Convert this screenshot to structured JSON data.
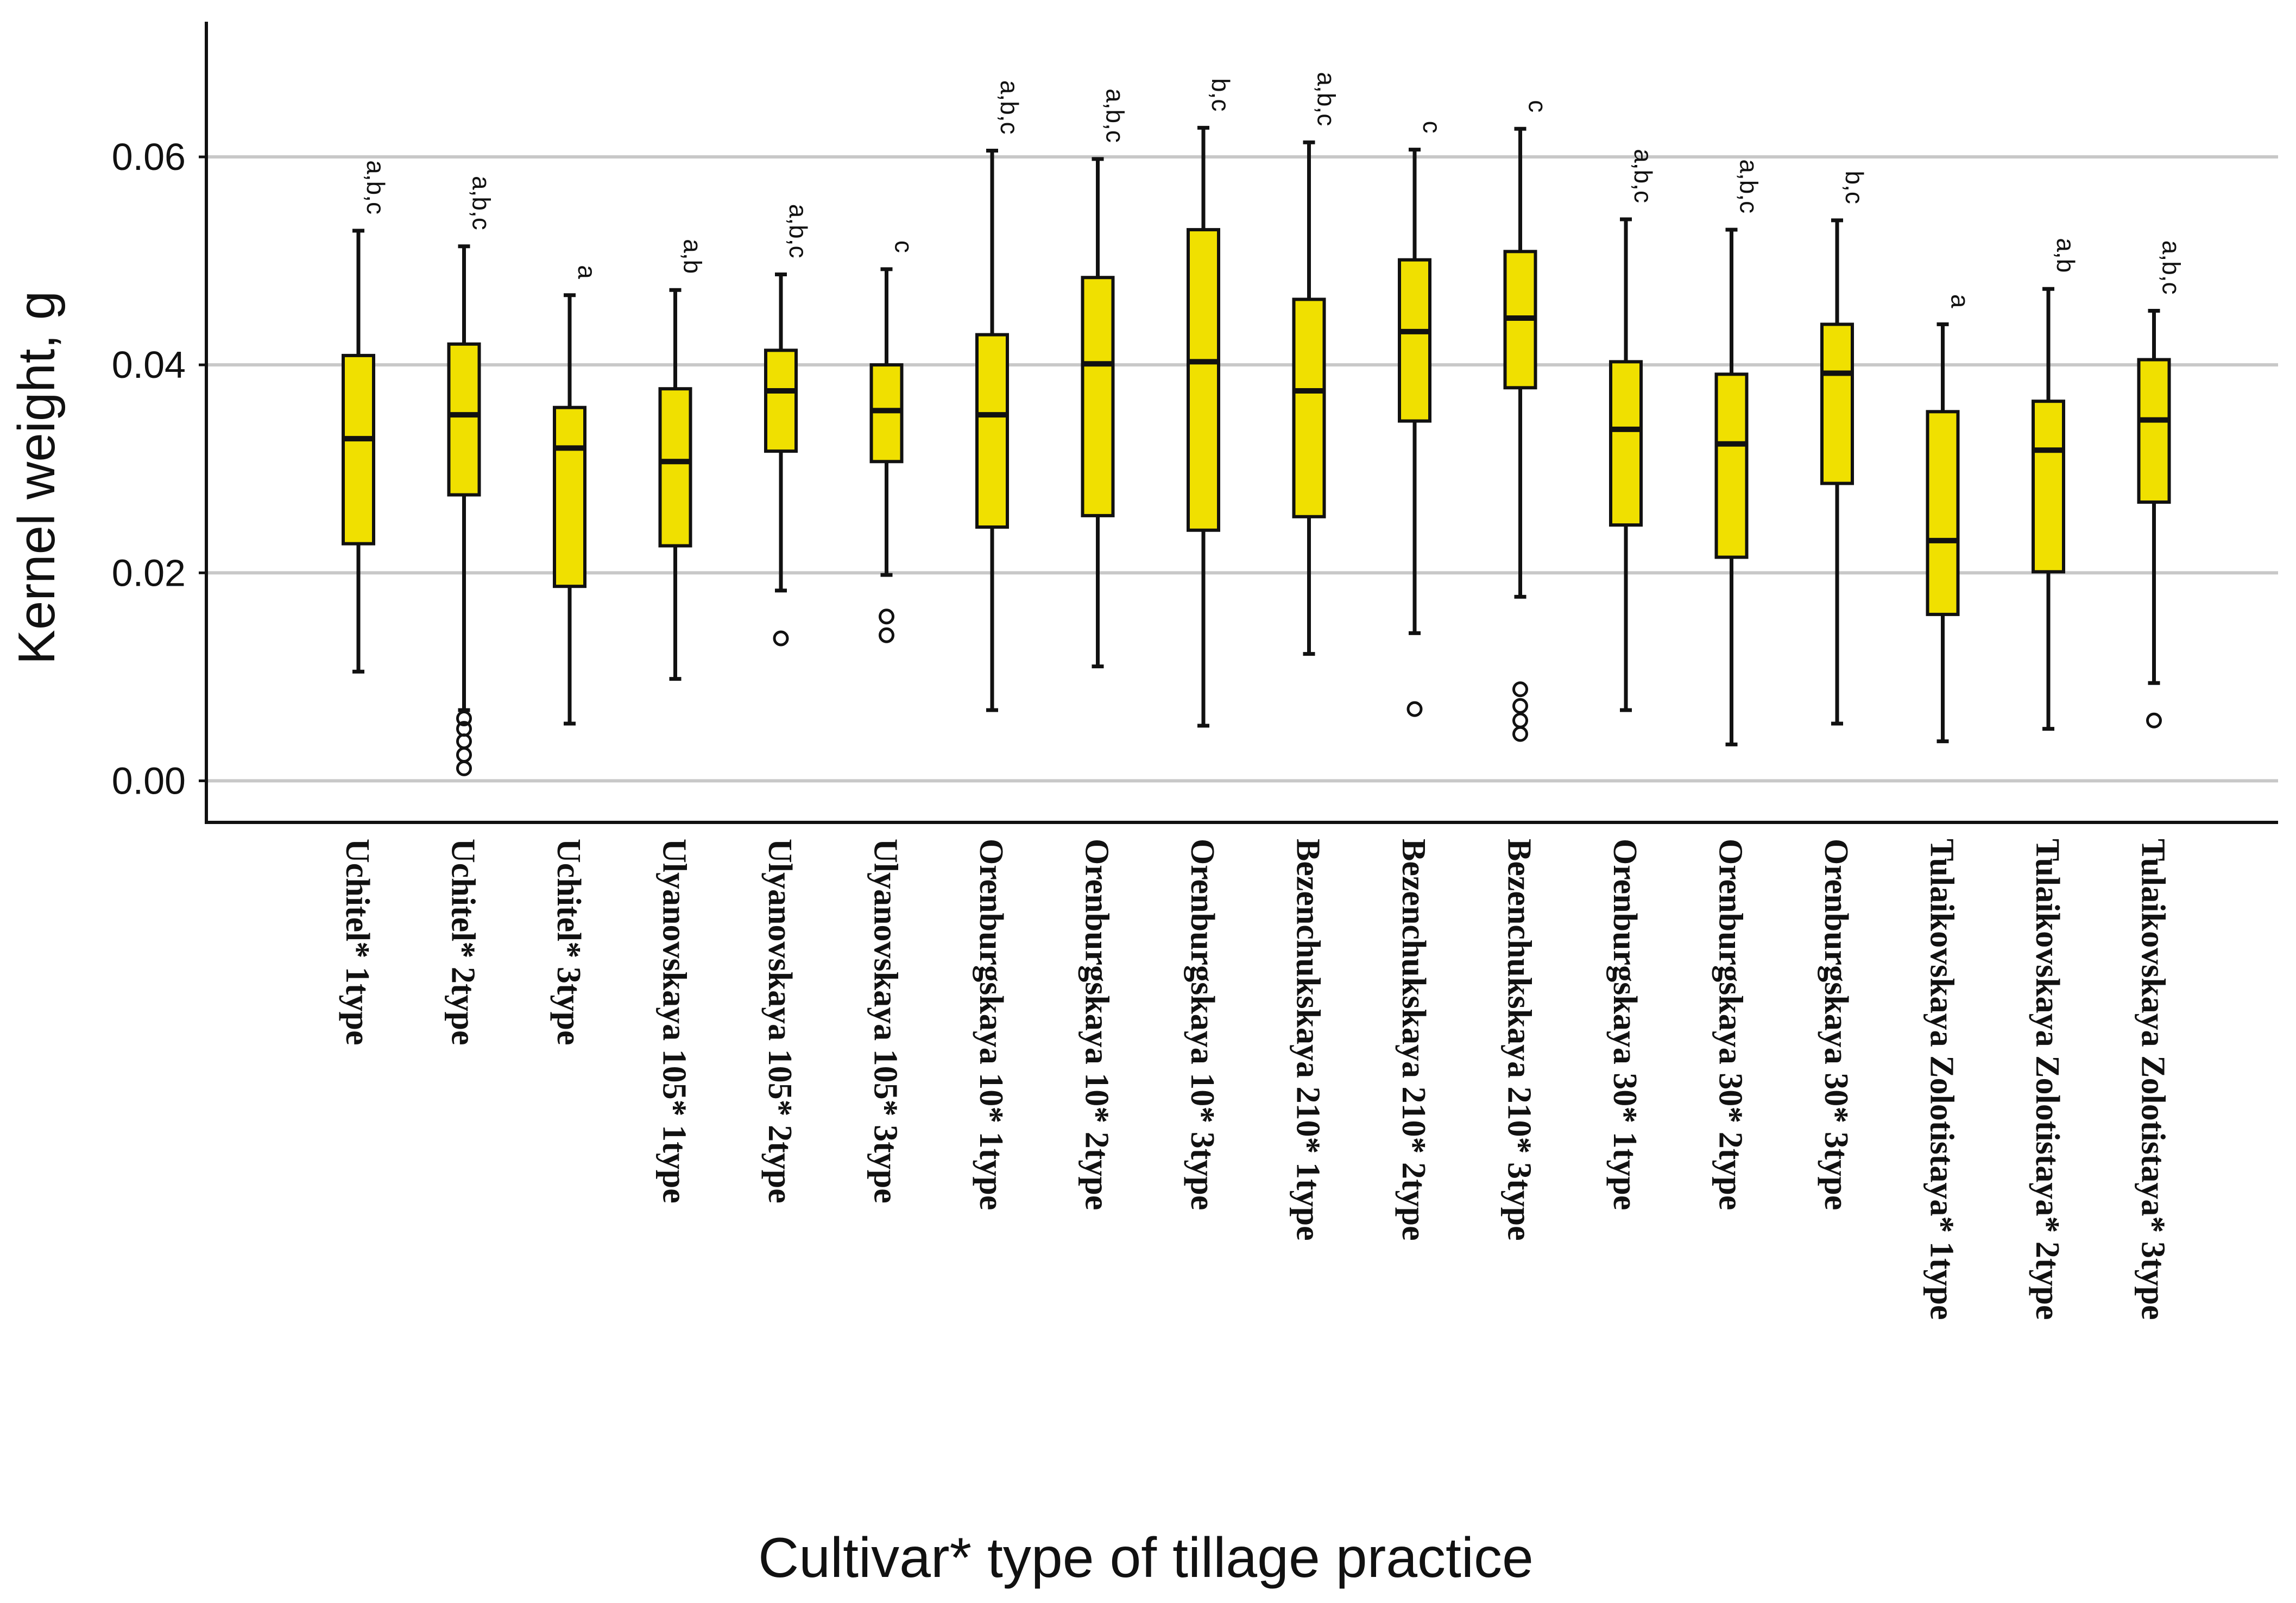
{
  "chart_data": {
    "type": "boxplot",
    "ylabel": "Kernel weight, g",
    "xlabel": "Cultivar* type of tillage practice",
    "ylim": [
      -0.004,
      0.073
    ],
    "yticks": [
      "0.00",
      "0.02",
      "0.04",
      "0.06"
    ],
    "ytick_values": [
      0.0,
      0.02,
      0.04,
      0.06
    ],
    "grid": true,
    "box_color": "#f0e000",
    "box_edge": "#111111",
    "categories": [
      "Uchitel* 1type",
      "Uchitel* 2type",
      "Uchitel* 3type",
      "Ulyanovskaya 105* 1type",
      "Ulyanovskaya 105* 2type",
      "Ulyanovskaya 105* 3type",
      "Orenburgskaya 10* 1type",
      "Orenburgskaya 10* 2type",
      "Orenburgskaya 10* 3type",
      "Bezenchukskaya 210* 1type",
      "Bezenchukskaya 210* 2type",
      "Bezenchukskaya 210* 3type",
      "Orenburgskaya 30* 1type",
      "Orenburgskaya 30* 2type",
      "Orenburgskaya 30* 3type",
      "Tulaikovskaya Zolotistaya* 1type",
      "Tulaikovskaya Zolotistaya* 2type",
      "Tulaikovskaya Zolotistaya* 3type"
    ],
    "boxes": [
      {
        "min": 0.0105,
        "q1": 0.0228,
        "median": 0.0329,
        "q3": 0.0409,
        "max": 0.0529,
        "outliers": [],
        "letters": "a,b,c"
      },
      {
        "min": 0.0068,
        "q1": 0.0275,
        "median": 0.0352,
        "q3": 0.042,
        "max": 0.0514,
        "outliers": [
          0.006,
          0.005,
          0.0038,
          0.0025,
          0.0012
        ],
        "letters": "a,b,c"
      },
      {
        "min": 0.0055,
        "q1": 0.0187,
        "median": 0.032,
        "q3": 0.0359,
        "max": 0.0467,
        "outliers": [],
        "letters": "a"
      },
      {
        "min": 0.0098,
        "q1": 0.0226,
        "median": 0.0307,
        "q3": 0.0377,
        "max": 0.0472,
        "outliers": [],
        "letters": "a,b"
      },
      {
        "min": 0.0183,
        "q1": 0.0317,
        "median": 0.0375,
        "q3": 0.0414,
        "max": 0.0487,
        "outliers": [
          0.0137
        ],
        "letters": "a,b,c"
      },
      {
        "min": 0.0198,
        "q1": 0.0307,
        "median": 0.0356,
        "q3": 0.04,
        "max": 0.0492,
        "outliers": [
          0.0158,
          0.014
        ],
        "letters": "c"
      },
      {
        "min": 0.0068,
        "q1": 0.0244,
        "median": 0.0352,
        "q3": 0.0429,
        "max": 0.0606,
        "outliers": [],
        "letters": "a,b,c"
      },
      {
        "min": 0.011,
        "q1": 0.0255,
        "median": 0.0401,
        "q3": 0.0484,
        "max": 0.0598,
        "outliers": [],
        "letters": "a,b,c"
      },
      {
        "min": 0.0053,
        "q1": 0.0241,
        "median": 0.0403,
        "q3": 0.053,
        "max": 0.0628,
        "outliers": [],
        "letters": "b,c"
      },
      {
        "min": 0.0122,
        "q1": 0.0254,
        "median": 0.0375,
        "q3": 0.0463,
        "max": 0.0614,
        "outliers": [],
        "letters": "a,b,c"
      },
      {
        "min": 0.0142,
        "q1": 0.0346,
        "median": 0.0432,
        "q3": 0.0501,
        "max": 0.0607,
        "outliers": [
          0.0069
        ],
        "letters": "c"
      },
      {
        "min": 0.0177,
        "q1": 0.0378,
        "median": 0.0445,
        "q3": 0.0509,
        "max": 0.0627,
        "outliers": [
          0.0088,
          0.0072,
          0.0058,
          0.0045
        ],
        "letters": "c"
      },
      {
        "min": 0.0068,
        "q1": 0.0246,
        "median": 0.0338,
        "q3": 0.0403,
        "max": 0.054,
        "outliers": [],
        "letters": "a,b,c"
      },
      {
        "min": 0.0035,
        "q1": 0.0215,
        "median": 0.0324,
        "q3": 0.0391,
        "max": 0.053,
        "outliers": [],
        "letters": "a,b,c"
      },
      {
        "min": 0.0055,
        "q1": 0.0286,
        "median": 0.0392,
        "q3": 0.0439,
        "max": 0.0539,
        "outliers": [],
        "letters": "b,c"
      },
      {
        "min": 0.0038,
        "q1": 0.016,
        "median": 0.0231,
        "q3": 0.0355,
        "max": 0.0439,
        "outliers": [],
        "letters": "a"
      },
      {
        "min": 0.005,
        "q1": 0.0201,
        "median": 0.0318,
        "q3": 0.0365,
        "max": 0.0473,
        "outliers": [],
        "letters": "a,b"
      },
      {
        "min": 0.0094,
        "q1": 0.0268,
        "median": 0.0347,
        "q3": 0.0405,
        "max": 0.0452,
        "outliers": [
          0.0058
        ],
        "letters": "a,b,c"
      }
    ]
  }
}
